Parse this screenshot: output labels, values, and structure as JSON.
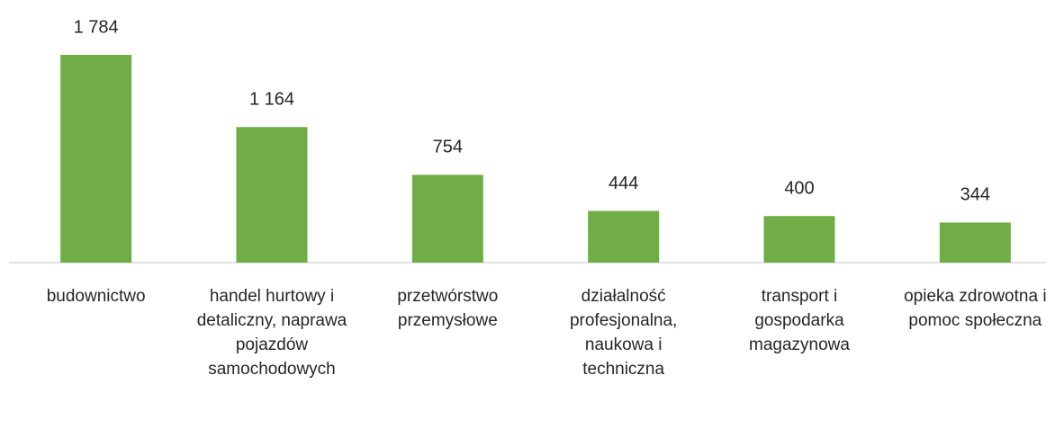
{
  "chart_data": {
    "type": "bar",
    "categories": [
      "budownictwo",
      "handel hurtowy i detaliczny, naprawa pojazdów samochodowych",
      "przetwórstwo przemysłowe",
      "działalność profesjonalna, naukowa i techniczna",
      "transport i gospodarka magazynowa",
      "opieka zdrowotna i pomoc społeczna"
    ],
    "values": [
      1784,
      1164,
      754,
      444,
      400,
      344
    ],
    "value_labels": [
      "1 784",
      "1 164",
      "754",
      "444",
      "400",
      "344"
    ],
    "color": "#70ad47"
  }
}
